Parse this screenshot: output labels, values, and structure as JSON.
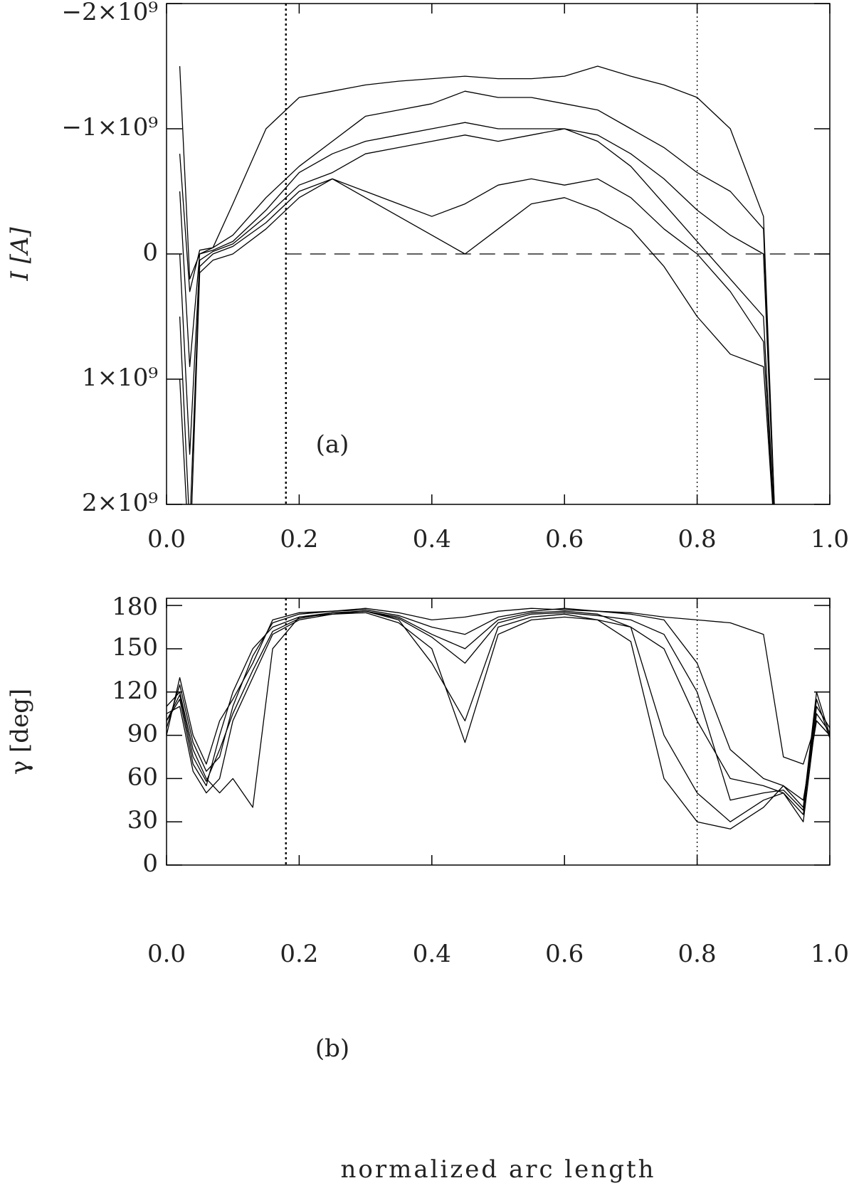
{
  "chart_data": [
    {
      "type": "line",
      "ylabel": "I [A]",
      "annotation": "(a)",
      "xlim": [
        0,
        1
      ],
      "xticks": [
        {
          "value": 0,
          "label": "0.0"
        },
        0.2,
        0.4,
        0.6,
        0.8,
        {
          "value": 1,
          "label": "1.0"
        }
      ],
      "ylim": [
        2000000000,
        -2000000000
      ],
      "yticks": [
        {
          "value": -2000000000,
          "label": "−2×10⁹"
        },
        {
          "value": -1000000000,
          "label": "−1×10⁹"
        },
        0,
        {
          "value": 1000000000,
          "label": "1×10⁹"
        },
        {
          "value": 2000000000,
          "label": "2×10⁹"
        }
      ],
      "vlines": [
        0.18,
        0.8
      ],
      "hline": 0,
      "grid": false,
      "x": [
        0.02,
        0.035,
        0.05,
        0.07,
        0.1,
        0.15,
        0.2,
        0.25,
        0.3,
        0.35,
        0.4,
        0.45,
        0.5,
        0.55,
        0.6,
        0.65,
        0.7,
        0.75,
        0.8,
        0.85,
        0.9,
        0.92
      ],
      "series": [
        {
          "color": "#000000",
          "values": [
            -1500000000,
            200000000,
            0,
            -50000000,
            -400000000,
            -1000000000,
            -1250000000,
            -1300000000,
            -1350000000,
            -1380000000,
            -1400000000,
            -1420000000,
            -1400000000,
            -1400000000,
            -1420000000,
            -1500000000,
            -1420000000,
            -1350000000,
            -1250000000,
            -1000000000,
            -300000000,
            2500000000
          ]
        },
        {
          "color": "#000000",
          "values": [
            -800000000,
            300000000,
            -30000000,
            -50000000,
            -150000000,
            -450000000,
            -700000000,
            -900000000,
            -1100000000,
            -1150000000,
            -1200000000,
            -1300000000,
            -1250000000,
            -1250000000,
            -1200000000,
            -1150000000,
            -1000000000,
            -850000000,
            -650000000,
            -500000000,
            -200000000,
            2500000000
          ]
        },
        {
          "color": "#000000",
          "values": [
            -500000000,
            900000000,
            0,
            -30000000,
            -100000000,
            -350000000,
            -650000000,
            -800000000,
            -900000000,
            -950000000,
            -1000000000,
            -1050000000,
            -1000000000,
            -1000000000,
            -1000000000,
            -950000000,
            -800000000,
            -600000000,
            -350000000,
            -150000000,
            0,
            2500000000
          ]
        },
        {
          "color": "#000000",
          "values": [
            0,
            1600000000,
            50000000,
            -20000000,
            -80000000,
            -300000000,
            -550000000,
            -650000000,
            -800000000,
            -850000000,
            -900000000,
            -950000000,
            -900000000,
            -950000000,
            -1000000000,
            -900000000,
            -700000000,
            -400000000,
            -100000000,
            200000000,
            500000000,
            2500000000
          ]
        },
        {
          "color": "#000000",
          "values": [
            500000000,
            2200000000,
            100000000,
            0,
            -60000000,
            -250000000,
            -500000000,
            -600000000,
            -500000000,
            -400000000,
            -300000000,
            -400000000,
            -550000000,
            -600000000,
            -550000000,
            -600000000,
            -450000000,
            -200000000,
            0,
            300000000,
            700000000,
            2500000000
          ]
        },
        {
          "color": "#000000",
          "values": [
            1000000000,
            2500000000,
            150000000,
            50000000,
            0,
            -200000000,
            -450000000,
            -600000000,
            -450000000,
            -300000000,
            -150000000,
            0,
            -200000000,
            -400000000,
            -450000000,
            -350000000,
            -200000000,
            100000000,
            500000000,
            800000000,
            900000000,
            2500000000
          ]
        }
      ]
    },
    {
      "type": "line",
      "ylabel": "γ [deg]",
      "xlabel": "normalized arc length",
      "annotation": "(b)",
      "xlim": [
        0,
        1
      ],
      "xticks": [
        {
          "value": 0,
          "label": "0.0"
        },
        0.2,
        0.4,
        0.6,
        0.8,
        {
          "value": 1,
          "label": "1.0"
        }
      ],
      "ylim": [
        0,
        185
      ],
      "yticks": [
        0,
        30,
        60,
        90,
        120,
        150,
        180
      ],
      "vlines": [
        0.18,
        0.8
      ],
      "grid": false,
      "x": [
        0,
        0.02,
        0.04,
        0.06,
        0.08,
        0.1,
        0.13,
        0.16,
        0.2,
        0.25,
        0.3,
        0.35,
        0.4,
        0.45,
        0.5,
        0.55,
        0.6,
        0.65,
        0.7,
        0.75,
        0.8,
        0.85,
        0.9,
        0.93,
        0.96,
        0.98,
        1.0
      ],
      "series": [
        {
          "color": "#000000",
          "values": [
            90,
            130,
            90,
            70,
            100,
            115,
            140,
            170,
            175,
            176,
            178,
            175,
            170,
            172,
            176,
            178,
            177,
            176,
            175,
            172,
            170,
            168,
            160,
            75,
            70,
            100,
            90
          ]
        },
        {
          "color": "#000000",
          "values": [
            100,
            115,
            70,
            55,
            90,
            120,
            150,
            165,
            172,
            175,
            176,
            172,
            160,
            150,
            170,
            175,
            176,
            174,
            165,
            150,
            100,
            60,
            55,
            50,
            35,
            110,
            95
          ]
        },
        {
          "color": "#000000",
          "values": [
            105,
            110,
            65,
            50,
            60,
            100,
            130,
            160,
            170,
            174,
            176,
            170,
            140,
            100,
            165,
            172,
            174,
            170,
            155,
            60,
            30,
            25,
            40,
            55,
            40,
            120,
            90
          ]
        },
        {
          "color": "#000000",
          "values": [
            110,
            120,
            80,
            60,
            50,
            60,
            40,
            150,
            172,
            174,
            175,
            168,
            150,
            85,
            160,
            170,
            172,
            170,
            165,
            90,
            50,
            30,
            45,
            50,
            30,
            105,
            92
          ]
        },
        {
          "color": "#000000",
          "values": [
            95,
            125,
            85,
            65,
            75,
            110,
            145,
            168,
            174,
            176,
            177,
            173,
            165,
            160,
            172,
            176,
            178,
            176,
            174,
            170,
            140,
            80,
            60,
            55,
            45,
            100,
            90
          ]
        },
        {
          "color": "#000000",
          "values": [
            100,
            118,
            75,
            58,
            80,
            105,
            135,
            162,
            171,
            175,
            176,
            171,
            158,
            140,
            168,
            174,
            175,
            173,
            170,
            160,
            120,
            45,
            50,
            52,
            38,
            115,
            88
          ]
        }
      ]
    }
  ]
}
